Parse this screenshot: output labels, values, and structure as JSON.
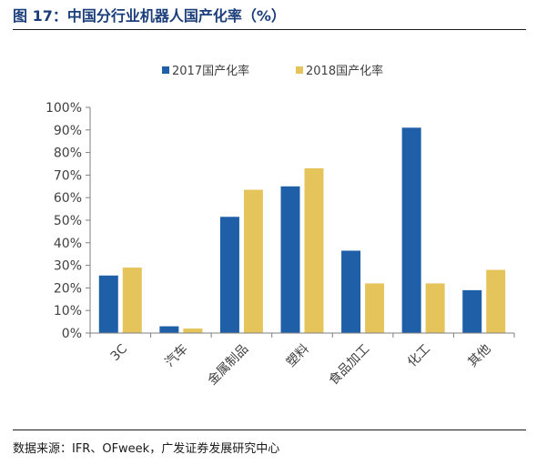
{
  "figure": {
    "title": "图 17：中国分行业机器人国产化率（%）",
    "source": "数据来源：IFR、OFweek，广发证券发展研究中心"
  },
  "colors": {
    "series_2017": "#1f5fa8",
    "series_2018": "#e6c45c",
    "title": "#1b3e7a",
    "axis": "#7f7f7f",
    "text": "#404040"
  },
  "chart_data": {
    "type": "bar",
    "categories": [
      "3C",
      "汽车",
      "金属制品",
      "塑料",
      "食品加工",
      "化工",
      "其他"
    ],
    "series": [
      {
        "name": "2017国产化率",
        "values": [
          25.5,
          3,
          51.5,
          65,
          36.5,
          91,
          19
        ]
      },
      {
        "name": "2018国产化率",
        "values": [
          29,
          2,
          63.5,
          73,
          22,
          22,
          28
        ]
      }
    ],
    "ylim": [
      0,
      100
    ],
    "yticks": [
      "0%",
      "10%",
      "20%",
      "30%",
      "40%",
      "50%",
      "60%",
      "70%",
      "80%",
      "90%",
      "100%"
    ],
    "xlabel": "",
    "ylabel": "",
    "grid": false,
    "legend": "top"
  }
}
